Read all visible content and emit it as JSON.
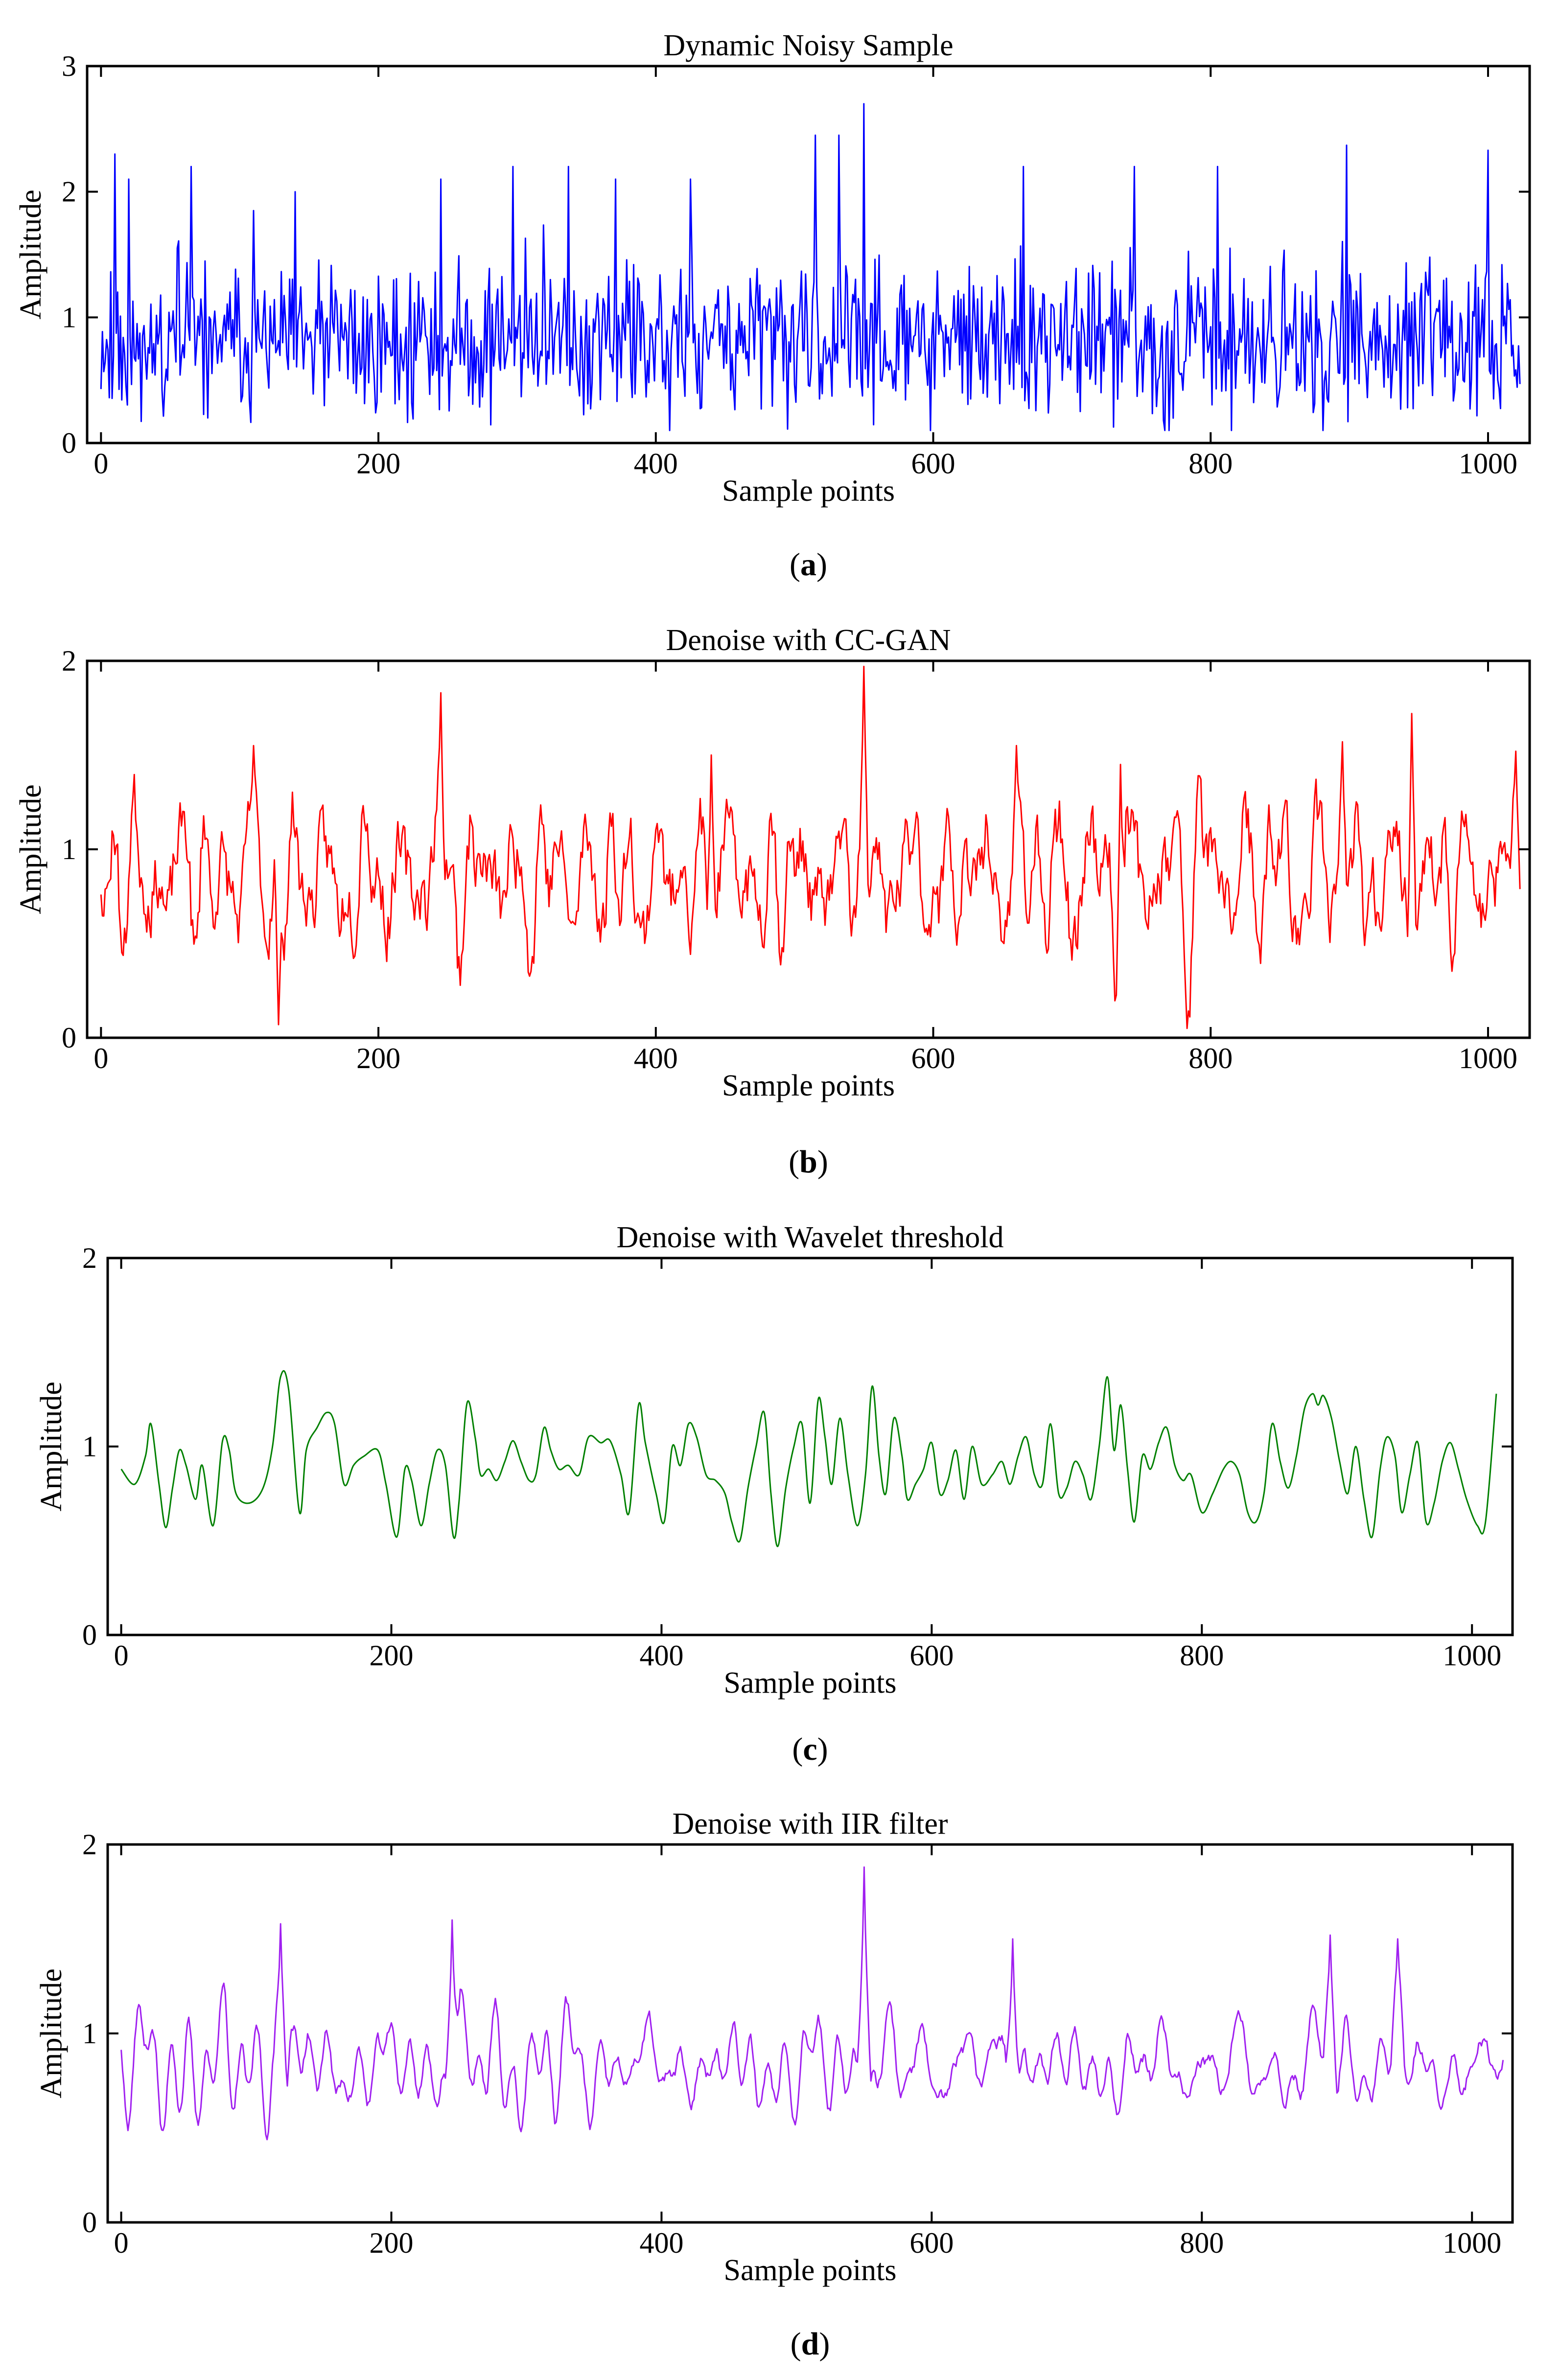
{
  "chart_data": [
    {
      "type": "line",
      "panel": "a",
      "title": "Dynamic Noisy Sample",
      "xlabel": "Sample points",
      "ylabel": "Amplitude",
      "xlim": [
        -10,
        1030
      ],
      "ylim": [
        0,
        3
      ],
      "xticks": [
        "0",
        "200",
        "400",
        "600",
        "800",
        "1000"
      ],
      "yticks": [
        "0",
        "1",
        "2",
        "3"
      ],
      "caption_letter": "a",
      "series": [
        {
          "name": "Dynamic Noisy Sample",
          "color": "#0000ff",
          "n": 1024,
          "seed": 11,
          "style": "noisy",
          "base": 0.8,
          "amp": 0.55,
          "clip": [
            0.1,
            2.7
          ],
          "peaks": [
            [
              10,
              2.3
            ],
            [
              20,
              2.1
            ],
            [
              65,
              2.2
            ],
            [
              110,
              1.85
            ],
            [
              140,
              2.0
            ],
            [
              245,
              2.1
            ],
            [
              297,
              2.2
            ],
            [
              337,
              2.2
            ],
            [
              371,
              2.1
            ],
            [
              425,
              2.1
            ],
            [
              515,
              2.45
            ],
            [
              532,
              2.45
            ],
            [
              550,
              2.7
            ],
            [
              665,
              2.2
            ],
            [
              745,
              2.2
            ],
            [
              805,
              2.2
            ],
            [
              898,
              2.37
            ],
            [
              1000,
              2.33
            ]
          ]
        }
      ]
    },
    {
      "type": "line",
      "panel": "b",
      "title": "Denoise with CC-GAN",
      "xlabel": "Sample points",
      "ylabel": "Amplitude",
      "xlim": [
        -10,
        1030
      ],
      "ylim": [
        0,
        2
      ],
      "xticks": [
        "0",
        "200",
        "400",
        "600",
        "800",
        "1000"
      ],
      "yticks": [
        "0",
        "1",
        "2"
      ],
      "caption_letter": "b",
      "series": [
        {
          "name": "Denoise with CC-GAN",
          "color": "#ff0000",
          "n": 1024,
          "seed": 23,
          "style": "semi",
          "base": 0.85,
          "amp": 0.32,
          "clip": [
            0.05,
            2.0
          ],
          "peaks": [
            [
              110,
              1.55
            ],
            [
              128,
              0.07
            ],
            [
              245,
              1.83
            ],
            [
              440,
              1.5
            ],
            [
              550,
              1.97
            ],
            [
              660,
              1.55
            ],
            [
              735,
              1.45
            ],
            [
              895,
              1.57
            ],
            [
              945,
              1.72
            ],
            [
              1020,
              1.52
            ]
          ]
        }
      ]
    },
    {
      "type": "line",
      "panel": "c",
      "title": "Denoise with Wavelet threshold",
      "xlabel": "Sample points",
      "ylabel": "Amplitude",
      "xlim": [
        -10,
        1030
      ],
      "ylim": [
        0,
        2
      ],
      "xticks": [
        "0",
        "200",
        "400",
        "600",
        "800",
        "1000"
      ],
      "yticks": [
        "0",
        "1",
        "2"
      ],
      "caption_letter": "c",
      "series": [
        {
          "name": "Denoise with Wavelet threshold",
          "color": "#008000",
          "points": [
            [
              0,
              0.88
            ],
            [
              10,
              0.8
            ],
            [
              18,
              0.95
            ],
            [
              22,
              1.12
            ],
            [
              28,
              0.8
            ],
            [
              33,
              0.57
            ],
            [
              38,
              0.78
            ],
            [
              43,
              0.98
            ],
            [
              48,
              0.9
            ],
            [
              55,
              0.72
            ],
            [
              60,
              0.9
            ],
            [
              68,
              0.58
            ],
            [
              75,
              1.03
            ],
            [
              80,
              0.98
            ],
            [
              85,
              0.75
            ],
            [
              95,
              0.7
            ],
            [
              105,
              0.78
            ],
            [
              112,
              1.0
            ],
            [
              118,
              1.37
            ],
            [
              124,
              1.3
            ],
            [
              132,
              0.65
            ],
            [
              137,
              0.98
            ],
            [
              145,
              1.1
            ],
            [
              152,
              1.18
            ],
            [
              158,
              1.12
            ],
            [
              165,
              0.8
            ],
            [
              172,
              0.9
            ],
            [
              180,
              0.95
            ],
            [
              190,
              0.98
            ],
            [
              196,
              0.8
            ],
            [
              204,
              0.52
            ],
            [
              210,
              0.88
            ],
            [
              215,
              0.82
            ],
            [
              222,
              0.58
            ],
            [
              228,
              0.8
            ],
            [
              234,
              0.98
            ],
            [
              240,
              0.9
            ],
            [
              246,
              0.52
            ],
            [
              250,
              0.7
            ],
            [
              256,
              1.23
            ],
            [
              262,
              1.05
            ],
            [
              266,
              0.85
            ],
            [
              272,
              0.88
            ],
            [
              278,
              0.82
            ],
            [
              284,
              0.92
            ],
            [
              290,
              1.03
            ],
            [
              296,
              0.92
            ],
            [
              302,
              0.82
            ],
            [
              307,
              0.85
            ],
            [
              313,
              1.1
            ],
            [
              318,
              0.98
            ],
            [
              324,
              0.88
            ],
            [
              331,
              0.9
            ],
            [
              339,
              0.85
            ],
            [
              346,
              1.05
            ],
            [
              355,
              1.02
            ],
            [
              362,
              1.03
            ],
            [
              370,
              0.85
            ],
            [
              376,
              0.65
            ],
            [
              383,
              1.22
            ],
            [
              388,
              1.02
            ],
            [
              396,
              0.75
            ],
            [
              402,
              0.6
            ],
            [
              408,
              1.0
            ],
            [
              414,
              0.9
            ],
            [
              420,
              1.12
            ],
            [
              426,
              1.05
            ],
            [
              433,
              0.85
            ],
            [
              440,
              0.82
            ],
            [
              447,
              0.75
            ],
            [
              452,
              0.6
            ],
            [
              458,
              0.5
            ],
            [
              464,
              0.78
            ],
            [
              470,
              1.0
            ],
            [
              476,
              1.18
            ],
            [
              481,
              0.75
            ],
            [
              486,
              0.47
            ],
            [
              492,
              0.78
            ],
            [
              498,
              1.0
            ],
            [
              504,
              1.12
            ],
            [
              510,
              0.7
            ],
            [
              516,
              1.25
            ],
            [
              521,
              1.05
            ],
            [
              526,
              0.8
            ],
            [
              532,
              1.15
            ],
            [
              538,
              0.85
            ],
            [
              545,
              0.58
            ],
            [
              551,
              0.85
            ],
            [
              556,
              1.32
            ],
            [
              561,
              0.95
            ],
            [
              566,
              0.75
            ],
            [
              572,
              1.15
            ],
            [
              578,
              0.95
            ],
            [
              582,
              0.72
            ],
            [
              588,
              0.8
            ],
            [
              594,
              0.88
            ],
            [
              600,
              1.02
            ],
            [
              606,
              0.75
            ],
            [
              612,
              0.82
            ],
            [
              618,
              0.98
            ],
            [
              624,
              0.72
            ],
            [
              630,
              1.0
            ],
            [
              637,
              0.8
            ],
            [
              645,
              0.85
            ],
            [
              652,
              0.92
            ],
            [
              658,
              0.8
            ],
            [
              664,
              0.95
            ],
            [
              670,
              1.05
            ],
            [
              676,
              0.85
            ],
            [
              682,
              0.8
            ],
            [
              688,
              1.12
            ],
            [
              694,
              0.75
            ],
            [
              700,
              0.78
            ],
            [
              706,
              0.92
            ],
            [
              712,
              0.85
            ],
            [
              718,
              0.72
            ],
            [
              724,
              1.0
            ],
            [
              730,
              1.37
            ],
            [
              735,
              0.98
            ],
            [
              740,
              1.22
            ],
            [
              745,
              0.88
            ],
            [
              750,
              0.6
            ],
            [
              756,
              0.95
            ],
            [
              762,
              0.88
            ],
            [
              768,
              1.02
            ],
            [
              774,
              1.1
            ],
            [
              780,
              0.9
            ],
            [
              786,
              0.82
            ],
            [
              792,
              0.85
            ],
            [
              800,
              0.65
            ],
            [
              808,
              0.75
            ],
            [
              816,
              0.88
            ],
            [
              822,
              0.92
            ],
            [
              828,
              0.85
            ],
            [
              834,
              0.65
            ],
            [
              840,
              0.6
            ],
            [
              846,
              0.75
            ],
            [
              852,
              1.12
            ],
            [
              858,
              0.92
            ],
            [
              864,
              0.78
            ],
            [
              870,
              0.95
            ],
            [
              876,
              1.2
            ],
            [
              882,
              1.28
            ],
            [
              886,
              1.22
            ],
            [
              890,
              1.27
            ],
            [
              896,
              1.15
            ],
            [
              902,
              0.92
            ],
            [
              908,
              0.75
            ],
            [
              914,
              1.0
            ],
            [
              920,
              0.72
            ],
            [
              926,
              0.52
            ],
            [
              932,
              0.88
            ],
            [
              937,
              1.05
            ],
            [
              943,
              0.95
            ],
            [
              948,
              0.65
            ],
            [
              954,
              0.85
            ],
            [
              960,
              1.02
            ],
            [
              966,
              0.6
            ],
            [
              972,
              0.7
            ],
            [
              978,
              0.92
            ],
            [
              984,
              1.02
            ],
            [
              990,
              0.88
            ],
            [
              996,
              0.72
            ],
            [
              1004,
              0.58
            ],
            [
              1010,
              0.6
            ],
            [
              1018,
              1.28
            ]
          ]
        }
      ]
    },
    {
      "type": "line",
      "panel": "d",
      "title": "Denoise with IIR filter",
      "xlabel": "Sample points",
      "ylabel": "Amplitude",
      "xlim": [
        -10,
        1030
      ],
      "ylim": [
        0,
        2
      ],
      "xticks": [
        "0",
        "200",
        "400",
        "600",
        "800",
        "1000"
      ],
      "yticks": [
        "0",
        "1",
        "2"
      ],
      "caption_letter": "d",
      "series": [
        {
          "name": "Denoise with IIR filter",
          "color": "#a020f0",
          "n": 1024,
          "seed": 37,
          "style": "smooth",
          "base": 0.82,
          "amp": 0.34,
          "clip": [
            0.35,
            1.88
          ],
          "peaks": [
            [
              118,
              1.58
            ],
            [
              245,
              1.6
            ],
            [
              550,
              1.88
            ],
            [
              660,
              1.5
            ],
            [
              895,
              1.52
            ],
            [
              945,
              1.5
            ]
          ]
        }
      ]
    }
  ]
}
